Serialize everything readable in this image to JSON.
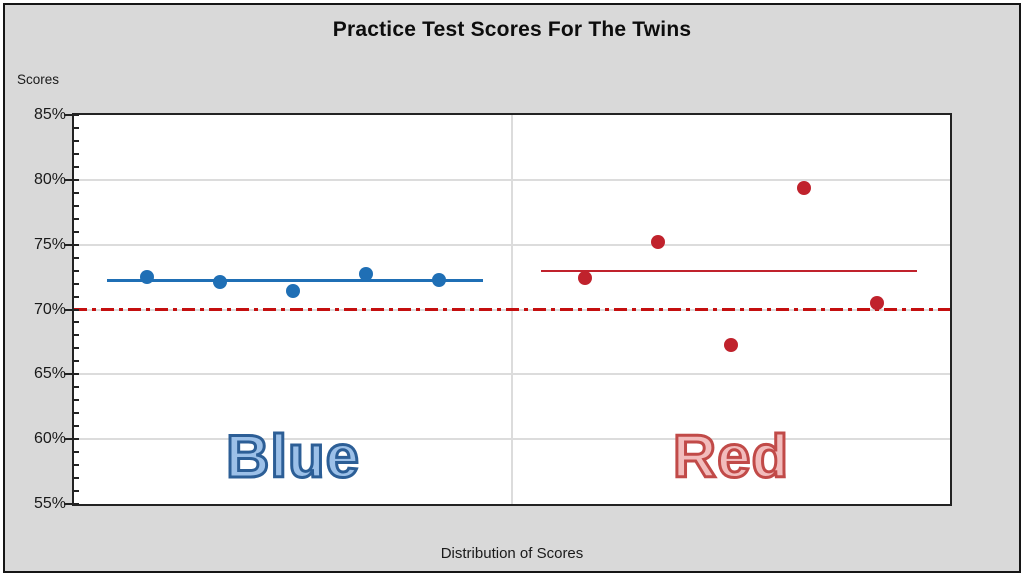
{
  "window": {
    "background": "#d9d9d9",
    "border_color": "#161616"
  },
  "title": "Practice Test Scores For The Twins",
  "axis_titles": {
    "y": "Scores",
    "x": "Distribution of Scores"
  },
  "chart_data": {
    "type": "scatter",
    "title": "Practice Test Scores For The Twins",
    "ylabel": "Scores",
    "xlabel": "Distribution of Scores",
    "ylim": [
      55,
      85
    ],
    "y_major_unit": 5,
    "y_minor_unit": 1,
    "y_tick_labels": [
      "85%",
      "80%",
      "75%",
      "70%",
      "65%",
      "60%",
      "55%"
    ],
    "xlim": [
      0,
      12
    ],
    "grid": {
      "horizontal_major": true,
      "vertical_center": true,
      "color": "#dcdcdc"
    },
    "plot_border_color": "#232323",
    "series": [
      {
        "name": "Blue",
        "color": "#1f6fb5",
        "marker": "circle",
        "x": [
          1,
          2,
          3,
          4,
          5
        ],
        "values": [
          72.5,
          72.1,
          71.4,
          72.7,
          72.3
        ],
        "mean_line": {
          "value": 72.2,
          "x_start": 0.45,
          "x_end": 5.6,
          "thickness": 3
        }
      },
      {
        "name": "Red",
        "color": "#c0222c",
        "marker": "circle",
        "x": [
          7,
          8,
          9,
          10,
          11
        ],
        "values": [
          72.4,
          75.2,
          67.3,
          79.4,
          70.5
        ],
        "mean_line": {
          "value": 73.0,
          "x_start": 6.4,
          "x_end": 11.55,
          "thickness": 2
        }
      }
    ],
    "reference_line": {
      "value": 70,
      "style": "dash-dot",
      "color": "#c40f0f",
      "thickness": 3
    },
    "annotations": [
      {
        "text": "Blue",
        "fill": "#9cc0e8",
        "outline": "#2c5e96"
      },
      {
        "text": "Red",
        "fill": "#f2bcbc",
        "outline": "#c14a48"
      }
    ]
  }
}
